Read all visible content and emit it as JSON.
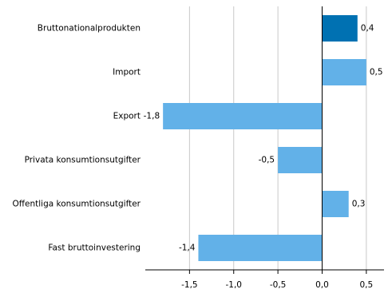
{
  "chart_data": {
    "type": "hbar",
    "categories": [
      "Bruttonationalprodukten",
      "Import",
      "Export",
      "Privata konsumtionsutgifter",
      "Offentliga konsumtionsutgifter",
      "Fast bruttoinvestering"
    ],
    "values": [
      0.4,
      0.5,
      -1.8,
      -0.5,
      0.3,
      -1.4
    ],
    "value_labels": [
      "0,4",
      "0,5",
      "-1,8",
      "-0,5",
      "0,3",
      "-1,4"
    ],
    "colors": [
      "#0071b2",
      "#62b1e8",
      "#62b1e8",
      "#62b1e8",
      "#62b1e8",
      "#62b1e8"
    ],
    "xlim": [
      -2.0,
      0.7
    ],
    "xticks": [
      {
        "value": -1.5,
        "label": "-1,5"
      },
      {
        "value": -1.0,
        "label": "-1,0"
      },
      {
        "value": -0.5,
        "label": "-0,5"
      },
      {
        "value": 0.0,
        "label": "0,0"
      },
      {
        "value": 0.5,
        "label": "0,5"
      }
    ],
    "grid": true
  }
}
